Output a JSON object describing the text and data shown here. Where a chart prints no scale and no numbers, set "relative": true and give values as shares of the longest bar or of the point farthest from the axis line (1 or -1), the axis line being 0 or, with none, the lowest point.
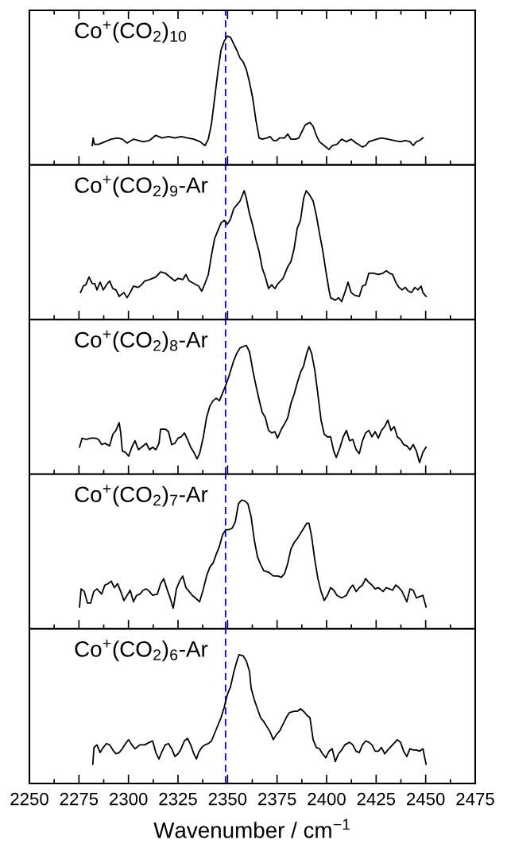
{
  "chart_data": [
    {
      "type": "line",
      "title": "Co$^{+}$(CO$_{2}$)$_{10}$",
      "relative": true,
      "xlim": [
        2250,
        2475
      ],
      "tick_labels": false,
      "grid": false,
      "xticks": [
        2250,
        {
          "value": 2262.5,
          "label": null
        },
        2275,
        {
          "value": 2287.5,
          "label": null
        },
        2300,
        {
          "value": 2312.5,
          "label": null
        },
        2325,
        {
          "value": 2337.5,
          "label": null
        },
        2350,
        {
          "value": 2362.5,
          "label": null
        },
        2375,
        {
          "value": 2387.5,
          "label": null
        },
        2400,
        {
          "value": 2412.5,
          "label": null
        },
        2425,
        {
          "value": 2437.5,
          "label": null
        },
        2450,
        {
          "value": 2462.5,
          "label": null
        },
        2475
      ],
      "ref_lines": [
        {
          "axis": "x",
          "value": 2349,
          "color": "#0000ff",
          "line_style": "dashed"
        }
      ],
      "series": [
        {
          "color": "#000000",
          "x": [
            2281.7,
            2282.2,
            2282.8,
            2284.9,
            2288.1,
            2291.3,
            2294.5,
            2296.9,
            2299.3,
            2302.5,
            2307.4,
            2310.6,
            2313.8,
            2317.0,
            2320.2,
            2323.4,
            2326.6,
            2329.8,
            2333.0,
            2336.2,
            2338.6,
            2340.3,
            2341.9,
            2343.5,
            2345.1,
            2346.7,
            2348.3,
            2349.9,
            2351.5,
            2353.1,
            2354.7,
            2356.3,
            2357.9,
            2359.5,
            2361.1,
            2362.7,
            2364.3,
            2365.9,
            2367.5,
            2369.9,
            2371.5,
            2373.1,
            2374.7,
            2376.4,
            2378.8,
            2380.4,
            2382.0,
            2384.4,
            2386.0,
            2387.6,
            2389.2,
            2391.6,
            2393.2,
            2394.8,
            2396.4,
            2398.8,
            2401.2,
            2402.8,
            2405.2,
            2407.6,
            2410.0,
            2412.4,
            2414.9,
            2418.1,
            2419.7,
            2421.3,
            2425.3,
            2427.7,
            2430.9,
            2434.1,
            2437.3,
            2439.7,
            2442.1,
            2443.7,
            2445.3,
            2446.9,
            2448.6
          ],
          "values": [
            0.15,
            0.21,
            0.16,
            0.16,
            0.18,
            0.2,
            0.21,
            0.2,
            0.17,
            0.2,
            0.18,
            0.19,
            0.23,
            0.21,
            0.22,
            0.21,
            0.22,
            0.21,
            0.2,
            0.18,
            0.15,
            0.2,
            0.32,
            0.52,
            0.72,
            0.89,
            0.96,
            1,
            0.99,
            0.94,
            0.89,
            0.83,
            0.8,
            0.74,
            0.64,
            0.52,
            0.35,
            0.21,
            0.2,
            0.21,
            0.22,
            0.19,
            0.19,
            0.21,
            0.21,
            0.24,
            0.2,
            0.2,
            0.21,
            0.26,
            0.31,
            0.33,
            0.3,
            0.23,
            0.18,
            0.15,
            0.12,
            0.15,
            0.16,
            0.2,
            0.18,
            0.2,
            0.17,
            0.14,
            0.15,
            0.18,
            0.2,
            0.21,
            0.2,
            0.19,
            0.18,
            0.19,
            0.18,
            0.15,
            0.18,
            0.19,
            0.21
          ]
        }
      ]
    },
    {
      "type": "line",
      "title": "Co$^{+}$(CO$_{2}$)$_{9}$-Ar",
      "relative": true,
      "xlim": [
        2250,
        2475
      ],
      "tick_labels": false,
      "grid": false,
      "xticks": [
        2250,
        {
          "value": 2262.5,
          "label": null
        },
        2275,
        {
          "value": 2287.5,
          "label": null
        },
        2300,
        {
          "value": 2312.5,
          "label": null
        },
        2325,
        {
          "value": 2337.5,
          "label": null
        },
        2350,
        {
          "value": 2362.5,
          "label": null
        },
        2375,
        {
          "value": 2387.5,
          "label": null
        },
        2400,
        {
          "value": 2412.5,
          "label": null
        },
        2425,
        {
          "value": 2437.5,
          "label": null
        },
        2450,
        {
          "value": 2462.5,
          "label": null
        },
        2475
      ],
      "ref_lines": [
        {
          "axis": "x",
          "value": 2349,
          "color": "#0000ff",
          "line_style": "dashed"
        }
      ],
      "series": [
        {
          "color": "#000000",
          "x": [
            2275.8,
            2277.2,
            2278.5,
            2280.1,
            2281.7,
            2283.0,
            2284.1,
            2285.7,
            2287.3,
            2288.9,
            2290.5,
            2292.1,
            2293.7,
            2295.3,
            2297.7,
            2299.3,
            2300.9,
            2302.5,
            2305.0,
            2306.6,
            2308.2,
            2310.6,
            2313.8,
            2316.2,
            2318.6,
            2321.0,
            2323.4,
            2325.0,
            2327.4,
            2329.0,
            2330.6,
            2333.0,
            2335.4,
            2337.0,
            2338.6,
            2340.3,
            2341.9,
            2343.5,
            2345.1,
            2346.7,
            2348.3,
            2349.9,
            2351.5,
            2353.1,
            2354.7,
            2356.3,
            2358.4,
            2359.5,
            2361.1,
            2362.7,
            2364.3,
            2365.9,
            2367.5,
            2369.1,
            2370.7,
            2372.3,
            2373.9,
            2375.5,
            2378.0,
            2380.4,
            2382.0,
            2383.6,
            2385.2,
            2386.8,
            2388.4,
            2389.7,
            2391.3,
            2393.2,
            2394.8,
            2396.4,
            2398.0,
            2399.6,
            2401.2,
            2402.0,
            2404.4,
            2406.0,
            2407.6,
            2409.2,
            2410.8,
            2412.4,
            2414.0,
            2416.5,
            2418.1,
            2419.7,
            2421.3,
            2423.7,
            2426.1,
            2428.5,
            2430.1,
            2431.7,
            2433.3,
            2434.9,
            2436.5,
            2438.1,
            2439.7,
            2441.3,
            2442.9,
            2444.5,
            2446.1,
            2447.7,
            2448.6,
            2450.2
          ],
          "values": [
            0.21,
            0.26,
            0.27,
            0.33,
            0.28,
            0.28,
            0.23,
            0.29,
            0.23,
            0.27,
            0.3,
            0.24,
            0.23,
            0.18,
            0.21,
            0.17,
            0.21,
            0.26,
            0.25,
            0.27,
            0.3,
            0.31,
            0.33,
            0.37,
            0.36,
            0.33,
            0.3,
            0.32,
            0.31,
            0.35,
            0.3,
            0.28,
            0.26,
            0.22,
            0.28,
            0.35,
            0.5,
            0.63,
            0.69,
            0.75,
            0.77,
            0.74,
            0.78,
            0.86,
            0.89,
            0.92,
            1,
            0.94,
            0.82,
            0.73,
            0.62,
            0.53,
            0.4,
            0.33,
            0.24,
            0.27,
            0.24,
            0.28,
            0.32,
            0.41,
            0.45,
            0.55,
            0.71,
            0.77,
            0.94,
            1,
            0.97,
            0.92,
            0.81,
            0.67,
            0.54,
            0.38,
            0.23,
            0.17,
            0.15,
            0.17,
            0.14,
            0.21,
            0.29,
            0.21,
            0.19,
            0.18,
            0.26,
            0.27,
            0.36,
            0.36,
            0.35,
            0.36,
            0.38,
            0.36,
            0.35,
            0.29,
            0.25,
            0.23,
            0.25,
            0.22,
            0.21,
            0.25,
            0.23,
            0.26,
            0.21,
            0.18
          ]
        }
      ]
    },
    {
      "type": "line",
      "title": "Co$^{+}$(CO$_{2}$)$_{8}$-Ar",
      "relative": true,
      "xlim": [
        2250,
        2475
      ],
      "tick_labels": false,
      "grid": false,
      "xticks": [
        2250,
        {
          "value": 2262.5,
          "label": null
        },
        2275,
        {
          "value": 2287.5,
          "label": null
        },
        2300,
        {
          "value": 2312.5,
          "label": null
        },
        2325,
        {
          "value": 2337.5,
          "label": null
        },
        2350,
        {
          "value": 2362.5,
          "label": null
        },
        2375,
        {
          "value": 2387.5,
          "label": null
        },
        2400,
        {
          "value": 2412.5,
          "label": null
        },
        2425,
        {
          "value": 2437.5,
          "label": null
        },
        2450,
        {
          "value": 2462.5,
          "label": null
        },
        2475
      ],
      "ref_lines": [
        {
          "axis": "x",
          "value": 2349,
          "color": "#0000ff",
          "line_style": "dashed"
        }
      ],
      "series": [
        {
          "color": "#000000",
          "x": [
            2275.3,
            2276.6,
            2278.5,
            2280.9,
            2283.3,
            2284.9,
            2286.5,
            2288.1,
            2290.5,
            2292.1,
            2293.7,
            2295.3,
            2296.1,
            2296.9,
            2298.5,
            2300.1,
            2301.7,
            2303.3,
            2305.0,
            2306.6,
            2309.0,
            2310.6,
            2312.2,
            2313.8,
            2315.4,
            2316.2,
            2318.6,
            2320.2,
            2321.8,
            2323.4,
            2325.0,
            2326.6,
            2328.2,
            2329.8,
            2331.4,
            2333.0,
            2334.6,
            2335.9,
            2337.8,
            2339.4,
            2341.1,
            2342.7,
            2344.3,
            2345.9,
            2347.5,
            2349.1,
            2350.7,
            2353.1,
            2354.7,
            2356.3,
            2357.9,
            2359.5,
            2361.1,
            2362.7,
            2364.3,
            2365.9,
            2367.5,
            2369.1,
            2370.7,
            2372.3,
            2373.9,
            2375.2,
            2377.2,
            2378.8,
            2380.4,
            2382.0,
            2383.6,
            2385.2,
            2386.8,
            2388.4,
            2390.0,
            2391.1,
            2392.4,
            2394.0,
            2395.6,
            2397.2,
            2398.8,
            2400.4,
            2402.0,
            2403.6,
            2404.9,
            2406.8,
            2408.4,
            2410.0,
            2411.6,
            2413.2,
            2414.9,
            2416.5,
            2418.1,
            2419.7,
            2421.3,
            2422.9,
            2424.5,
            2426.1,
            2427.7,
            2429.3,
            2430.9,
            2432.5,
            2434.1,
            2435.7,
            2437.3,
            2438.9,
            2440.5,
            2442.1,
            2443.7,
            2445.3,
            2446.9,
            2448.6,
            2450.2
          ],
          "values": [
            0.21,
            0.28,
            0.27,
            0.28,
            0.28,
            0.27,
            0.23,
            0.24,
            0.22,
            0.31,
            0.34,
            0.4,
            0.32,
            0.18,
            0.17,
            0.14,
            0.21,
            0.26,
            0.19,
            0.21,
            0.24,
            0.19,
            0.21,
            0.19,
            0.24,
            0.35,
            0.35,
            0.33,
            0.23,
            0.24,
            0.28,
            0.29,
            0.32,
            0.27,
            0.21,
            0.17,
            0.12,
            0.16,
            0.29,
            0.44,
            0.53,
            0.57,
            0.59,
            0.57,
            0.63,
            0.69,
            0.76,
            0.88,
            0.94,
            0.98,
            0.99,
            1,
            0.95,
            0.81,
            0.69,
            0.58,
            0.48,
            0.44,
            0.34,
            0.32,
            0.33,
            0.28,
            0.35,
            0.39,
            0.44,
            0.55,
            0.62,
            0.71,
            0.79,
            0.84,
            0.94,
            0.99,
            0.94,
            0.81,
            0.62,
            0.42,
            0.31,
            0.29,
            0.29,
            0.18,
            0.13,
            0.21,
            0.29,
            0.34,
            0.26,
            0.27,
            0.19,
            0.16,
            0.26,
            0.32,
            0.34,
            0.29,
            0.33,
            0.28,
            0.34,
            0.37,
            0.42,
            0.34,
            0.37,
            0.29,
            0.27,
            0.23,
            0.22,
            0.19,
            0.23,
            0.18,
            0.09,
            0.17,
            0.21
          ]
        }
      ]
    },
    {
      "type": "line",
      "title": "Co$^{+}$(CO$_{2}$)$_{7}$-Ar",
      "relative": true,
      "xlim": [
        2250,
        2475
      ],
      "tick_labels": false,
      "grid": false,
      "xticks": [
        2250,
        {
          "value": 2262.5,
          "label": null
        },
        2275,
        {
          "value": 2287.5,
          "label": null
        },
        2300,
        {
          "value": 2312.5,
          "label": null
        },
        2325,
        {
          "value": 2337.5,
          "label": null
        },
        2350,
        {
          "value": 2362.5,
          "label": null
        },
        2375,
        {
          "value": 2387.5,
          "label": null
        },
        2400,
        {
          "value": 2412.5,
          "label": null
        },
        2425,
        {
          "value": 2437.5,
          "label": null
        },
        2450,
        {
          "value": 2462.5,
          "label": null
        },
        2475
      ],
      "ref_lines": [
        {
          "axis": "x",
          "value": 2349,
          "color": "#0000ff",
          "line_style": "dashed"
        }
      ],
      "series": [
        {
          "color": "#000000",
          "x": [
            2275.3,
            2276.1,
            2277.7,
            2279.3,
            2280.9,
            2282.5,
            2284.1,
            2286.5,
            2288.1,
            2289.7,
            2291.3,
            2292.9,
            2294.5,
            2296.1,
            2297.7,
            2299.3,
            2300.9,
            2302.5,
            2304.1,
            2305.8,
            2307.4,
            2309.0,
            2310.6,
            2312.2,
            2314.6,
            2316.2,
            2317.8,
            2319.4,
            2321.0,
            2322.6,
            2324.2,
            2325.8,
            2327.4,
            2329.0,
            2330.6,
            2332.2,
            2333.8,
            2335.9,
            2337.8,
            2339.4,
            2341.1,
            2342.7,
            2344.3,
            2345.9,
            2347.5,
            2349.1,
            2350.7,
            2352.3,
            2353.9,
            2355.5,
            2357.1,
            2359.0,
            2360.3,
            2361.9,
            2363.5,
            2365.1,
            2366.7,
            2368.3,
            2370.7,
            2373.1,
            2375.5,
            2377.2,
            2378.8,
            2380.4,
            2382.0,
            2383.6,
            2385.2,
            2386.8,
            2388.4,
            2390.0,
            2391.1,
            2392.4,
            2394.0,
            2395.6,
            2397.2,
            2398.8,
            2400.4,
            2402.0,
            2403.6,
            2405.2,
            2407.6,
            2410.0,
            2411.6,
            2413.2,
            2414.9,
            2416.5,
            2418.1,
            2419.7,
            2421.3,
            2422.9,
            2424.5,
            2426.1,
            2428.5,
            2430.1,
            2431.7,
            2433.3,
            2434.9,
            2436.5,
            2438.1,
            2440.5,
            2442.1,
            2443.7,
            2445.3,
            2446.9,
            2448.6,
            2450.2
          ],
          "values": [
            0.17,
            0.31,
            0.29,
            0.2,
            0.2,
            0.29,
            0.31,
            0.27,
            0.34,
            0.35,
            0.37,
            0.32,
            0.35,
            0.29,
            0.22,
            0.26,
            0.3,
            0.21,
            0.26,
            0.27,
            0.3,
            0.31,
            0.29,
            0.26,
            0.27,
            0.35,
            0.39,
            0.31,
            0.24,
            0.16,
            0.31,
            0.37,
            0.41,
            0.32,
            0.29,
            0.26,
            0.24,
            0.21,
            0.31,
            0.41,
            0.48,
            0.51,
            0.58,
            0.64,
            0.73,
            0.77,
            0.77,
            0.78,
            0.83,
            0.97,
            1,
            0.99,
            0.97,
            0.87,
            0.69,
            0.56,
            0.5,
            0.45,
            0.44,
            0.41,
            0.41,
            0.4,
            0.43,
            0.51,
            0.62,
            0.67,
            0.7,
            0.74,
            0.78,
            0.82,
            0.82,
            0.72,
            0.54,
            0.39,
            0.29,
            0.22,
            0.26,
            0.32,
            0.3,
            0.26,
            0.24,
            0.26,
            0.31,
            0.34,
            0.29,
            0.32,
            0.34,
            0.39,
            0.36,
            0.34,
            0.31,
            0.32,
            0.29,
            0.32,
            0.31,
            0.3,
            0.34,
            0.32,
            0.29,
            0.21,
            0.31,
            0.3,
            0.24,
            0.25,
            0.26,
            0.17
          ]
        }
      ]
    },
    {
      "type": "line",
      "title": "Co$^{+}$(CO$_{2}$)$_{6}$-Ar",
      "relative": true,
      "xlim": [
        2250,
        2475
      ],
      "tick_labels": "x",
      "grid": false,
      "xlabel": "Wavenumber / cm$^{−1}$",
      "xticks": [
        2250,
        {
          "value": 2262.5,
          "label": null
        },
        2275,
        {
          "value": 2287.5,
          "label": null
        },
        2300,
        {
          "value": 2312.5,
          "label": null
        },
        2325,
        {
          "value": 2337.5,
          "label": null
        },
        2350,
        {
          "value": 2362.5,
          "label": null
        },
        2375,
        {
          "value": 2387.5,
          "label": null
        },
        2400,
        {
          "value": 2412.5,
          "label": null
        },
        2425,
        {
          "value": 2437.5,
          "label": null
        },
        2450,
        {
          "value": 2462.5,
          "label": null
        },
        2475
      ],
      "ref_lines": [
        {
          "axis": "x",
          "value": 2349,
          "color": "#0000ff",
          "line_style": "dashed"
        }
      ],
      "series": [
        {
          "color": "#000000",
          "x": [
            2282.0,
            2282.6,
            2284.1,
            2285.7,
            2287.3,
            2288.9,
            2290.5,
            2292.1,
            2293.7,
            2295.3,
            2296.9,
            2298.5,
            2300.1,
            2301.7,
            2303.3,
            2305.8,
            2308.2,
            2310.6,
            2312.2,
            2313.8,
            2315.4,
            2317.0,
            2318.6,
            2320.2,
            2321.8,
            2323.4,
            2325.0,
            2326.6,
            2328.2,
            2329.8,
            2331.4,
            2333.0,
            2334.3,
            2335.4,
            2337.0,
            2338.6,
            2340.3,
            2341.9,
            2343.5,
            2345.1,
            2346.7,
            2348.3,
            2349.9,
            2351.5,
            2353.1,
            2354.7,
            2355.8,
            2357.9,
            2359.5,
            2361.1,
            2361.9,
            2363.5,
            2365.1,
            2366.7,
            2368.3,
            2369.9,
            2371.5,
            2373.1,
            2374.7,
            2376.4,
            2378.0,
            2379.6,
            2381.2,
            2383.6,
            2385.2,
            2386.8,
            2388.4,
            2390.0,
            2391.6,
            2393.2,
            2394.8,
            2396.4,
            2398.0,
            2399.6,
            2401.2,
            2402.8,
            2404.4,
            2406.0,
            2407.6,
            2409.2,
            2411.6,
            2413.2,
            2414.9,
            2416.5,
            2418.1,
            2419.7,
            2421.3,
            2422.9,
            2424.5,
            2426.1,
            2427.7,
            2429.3,
            2430.9,
            2433.3,
            2435.7,
            2437.3,
            2438.9,
            2440.5,
            2442.1,
            2443.7,
            2445.3,
            2446.9,
            2448.6,
            2450.2
          ],
          "values": [
            0.15,
            0.28,
            0.3,
            0.24,
            0.28,
            0.31,
            0.3,
            0.26,
            0.23,
            0.24,
            0.27,
            0.31,
            0.34,
            0.3,
            0.27,
            0.3,
            0.3,
            0.32,
            0.33,
            0.24,
            0.19,
            0.25,
            0.3,
            0.31,
            0.27,
            0.21,
            0.23,
            0.27,
            0.33,
            0.35,
            0.3,
            0.23,
            0.19,
            0.24,
            0.28,
            0.3,
            0.31,
            0.33,
            0.39,
            0.45,
            0.51,
            0.59,
            0.69,
            0.75,
            0.86,
            0.95,
            1,
            0.99,
            0.95,
            0.87,
            0.74,
            0.65,
            0.58,
            0.51,
            0.48,
            0.44,
            0.4,
            0.34,
            0.38,
            0.41,
            0.46,
            0.51,
            0.55,
            0.56,
            0.56,
            0.58,
            0.56,
            0.53,
            0.51,
            0.34,
            0.28,
            0.27,
            0.23,
            0.2,
            0.25,
            0.27,
            0.17,
            0.23,
            0.26,
            0.3,
            0.32,
            0.3,
            0.25,
            0.24,
            0.3,
            0.33,
            0.32,
            0.3,
            0.25,
            0.25,
            0.28,
            0.23,
            0.26,
            0.3,
            0.34,
            0.32,
            0.25,
            0.21,
            0.27,
            0.26,
            0.26,
            0.25,
            0.27,
            0.15
          ]
        }
      ]
    }
  ]
}
